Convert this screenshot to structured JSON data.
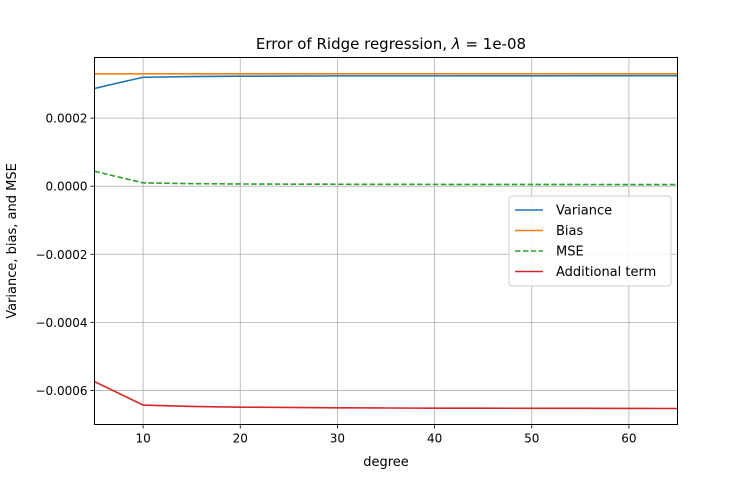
{
  "chart_data": {
    "type": "line",
    "title": "Error of Ridge regression, λ = 1e-08",
    "title_prefix": "Error of Ridge regression, ",
    "title_lambda": "λ",
    "title_suffix": " = 1e-08",
    "xlabel": "degree",
    "ylabel": "Variance, bias, and MSE",
    "xlim": [
      5,
      65
    ],
    "ylim": [
      -0.0007,
      0.000378
    ],
    "xticks": [
      10,
      20,
      30,
      40,
      50,
      60
    ],
    "xtick_labels": [
      "10",
      "20",
      "30",
      "40",
      "50",
      "60"
    ],
    "yticks": [
      -0.0006,
      -0.0004,
      -0.0002,
      0.0,
      0.0002
    ],
    "ytick_labels": [
      "−0.0006",
      "−0.0004",
      "−0.0002",
      "0.0000",
      "0.0002"
    ],
    "grid": true,
    "legend_position": "center-right",
    "x": [
      5,
      10,
      15,
      20,
      25,
      30,
      35,
      40,
      45,
      50,
      55,
      60,
      65
    ],
    "series": [
      {
        "name": "Variance",
        "color": "#1f77b4",
        "dash": "solid",
        "values": [
          0.000287,
          0.00032,
          0.000322,
          0.000323,
          0.0003235,
          0.000324,
          0.000324,
          0.000324,
          0.0003242,
          0.0003243,
          0.0003244,
          0.0003245,
          0.0003245
        ]
      },
      {
        "name": "Bias",
        "color": "#ff7f0e",
        "dash": "solid",
        "values": [
          0.00033,
          0.00033,
          0.00033,
          0.00033,
          0.00033,
          0.00033,
          0.00033,
          0.00033,
          0.00033,
          0.00033,
          0.00033,
          0.00033,
          0.00033
        ]
      },
      {
        "name": "MSE",
        "color": "#2ca02c",
        "dash": "dashed",
        "values": [
          4.37e-05,
          9.8e-06,
          7.5e-06,
          6.5e-06,
          6e-06,
          5.7e-06,
          5.5e-06,
          5.3e-06,
          5.2e-06,
          5.1e-06,
          5e-06,
          4.9e-06,
          4.8e-06
        ]
      },
      {
        "name": "Additional term",
        "color": "#d62728",
        "dash": "solid",
        "values": [
          -0.000574,
          -0.000643,
          -0.000647,
          -0.000649,
          -0.00065,
          -0.000651,
          -0.0006515,
          -0.000652,
          -0.0006522,
          -0.0006524,
          -0.0006526,
          -0.0006528,
          -0.000653
        ]
      }
    ]
  }
}
